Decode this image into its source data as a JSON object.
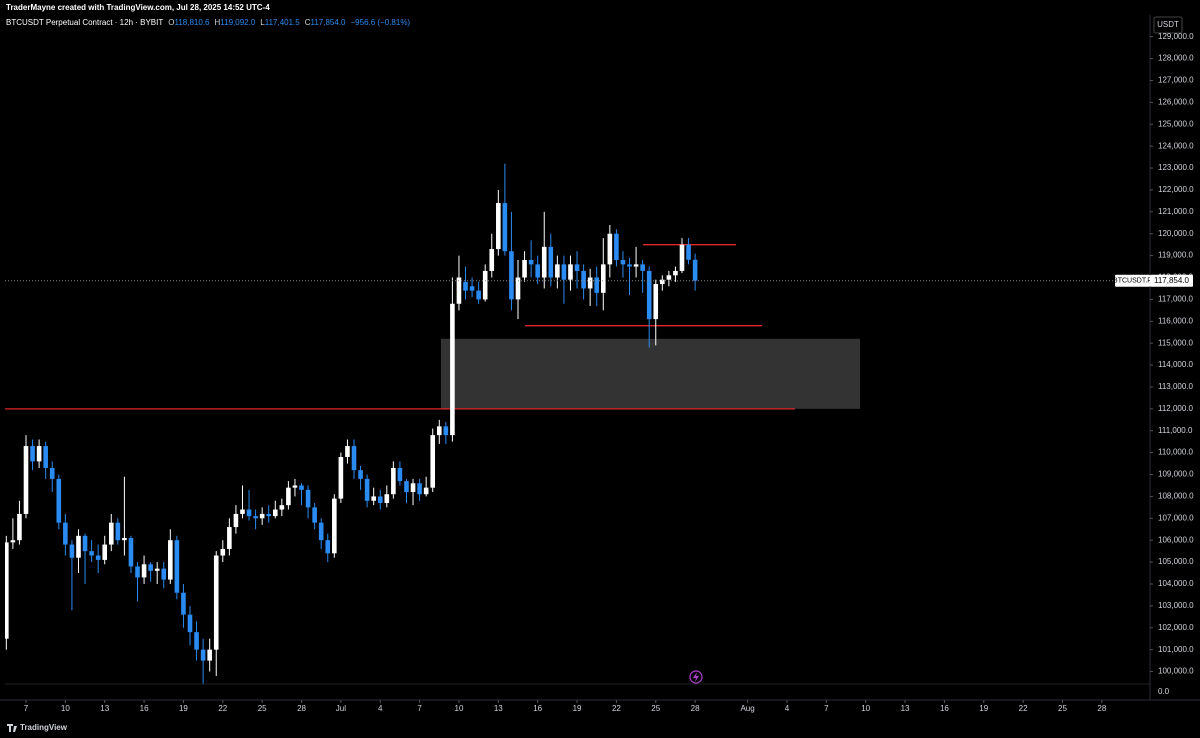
{
  "header": {
    "credit": "TraderMayne created with TradingView.com, Jul 28, 2025 14:52 UTC-4",
    "symbol": "BTCUSDT Perpetual Contract · 12h · BYBIT",
    "ohlc": [
      {
        "key": "O",
        "value": "118,810.6"
      },
      {
        "key": "H",
        "value": "119,092.0"
      },
      {
        "key": "L",
        "value": "117,401.5"
      },
      {
        "key": "C",
        "value": "117,854.0"
      }
    ],
    "change": "−956.6 (−0.81%)"
  },
  "footer": {
    "brand": "TradingView"
  },
  "chart_data": {
    "type": "candlestick",
    "currency": "USDT",
    "grid": false,
    "up_color": "#ffffff",
    "down_color": "#2a8bf2",
    "ylim": [
      98700,
      129900
    ],
    "yticks": [
      {
        "value": 100000,
        "label": "100,000.0"
      },
      {
        "value": 101000,
        "label": "101,000.0"
      },
      {
        "value": 102000,
        "label": "102,000.0"
      },
      {
        "value": 103000,
        "label": "103,000.0"
      },
      {
        "value": 104000,
        "label": "104,000.0"
      },
      {
        "value": 105000,
        "label": "105,000.0"
      },
      {
        "value": 106000,
        "label": "106,000.0"
      },
      {
        "value": 107000,
        "label": "107,000.0"
      },
      {
        "value": 108000,
        "label": "108,000.0"
      },
      {
        "value": 109000,
        "label": "109,000.0"
      },
      {
        "value": 110000,
        "label": "110,000.0"
      },
      {
        "value": 111000,
        "label": "111,000.0"
      },
      {
        "value": 112000,
        "label": "112,000.0"
      },
      {
        "value": 113000,
        "label": "113,000.0"
      },
      {
        "value": 114000,
        "label": "114,000.0"
      },
      {
        "value": 115000,
        "label": "115,000.0"
      },
      {
        "value": 116000,
        "label": "116,000.0"
      },
      {
        "value": 117000,
        "label": "117,000.0"
      },
      {
        "value": 118000,
        "label": "118,000.0"
      },
      {
        "value": 119000,
        "label": "119,000.0"
      },
      {
        "value": 120000,
        "label": "120,000.0"
      },
      {
        "value": 121000,
        "label": "121,000.0"
      },
      {
        "value": 122000,
        "label": "122,000.0"
      },
      {
        "value": 123000,
        "label": "123,000.0"
      },
      {
        "value": 124000,
        "label": "124,000.0"
      },
      {
        "value": 125000,
        "label": "125,000.0"
      },
      {
        "value": 126000,
        "label": "126,000.0"
      },
      {
        "value": 127000,
        "label": "127,000.0"
      },
      {
        "value": 128000,
        "label": "128,000.0"
      },
      {
        "value": 129000,
        "label": "129,000.0"
      }
    ],
    "pane_zero_label": "0.0",
    "xticks": [
      {
        "value": "2025-06-07",
        "label": "7"
      },
      {
        "value": "2025-06-10",
        "label": "10"
      },
      {
        "value": "2025-06-13",
        "label": "13"
      },
      {
        "value": "2025-06-16",
        "label": "16"
      },
      {
        "value": "2025-06-19",
        "label": "19"
      },
      {
        "value": "2025-06-22",
        "label": "22"
      },
      {
        "value": "2025-06-25",
        "label": "25"
      },
      {
        "value": "2025-06-28",
        "label": "28"
      },
      {
        "value": "2025-07-01",
        "label": "Jul"
      },
      {
        "value": "2025-07-04",
        "label": "4"
      },
      {
        "value": "2025-07-07",
        "label": "7"
      },
      {
        "value": "2025-07-10",
        "label": "10"
      },
      {
        "value": "2025-07-13",
        "label": "13"
      },
      {
        "value": "2025-07-16",
        "label": "16"
      },
      {
        "value": "2025-07-19",
        "label": "19"
      },
      {
        "value": "2025-07-22",
        "label": "22"
      },
      {
        "value": "2025-07-25",
        "label": "25"
      },
      {
        "value": "2025-07-28",
        "label": "28"
      },
      {
        "value": "2025-08-01",
        "label": "Aug"
      },
      {
        "value": "2025-08-04",
        "label": "4"
      },
      {
        "value": "2025-08-07",
        "label": "7"
      },
      {
        "value": "2025-08-10",
        "label": "10"
      },
      {
        "value": "2025-08-13",
        "label": "13"
      },
      {
        "value": "2025-08-16",
        "label": "16"
      },
      {
        "value": "2025-08-19",
        "label": "19"
      },
      {
        "value": "2025-08-22",
        "label": "22"
      },
      {
        "value": "2025-08-25",
        "label": "25"
      },
      {
        "value": "2025-08-28",
        "label": "28"
      }
    ],
    "open": [
      101500,
      105900,
      106000,
      107200,
      110300,
      109600,
      110300,
      109300,
      108800,
      106800,
      105800,
      105200,
      106200,
      105500,
      105300,
      105100,
      105800,
      106800,
      106000,
      106100,
      104800,
      104300,
      104900,
      104600,
      104700,
      104200,
      106000,
      103600,
      102600,
      101800,
      101000,
      100500,
      101000,
      105300,
      105600,
      106600,
      107200,
      107400,
      107100,
      107000,
      107200,
      107100,
      107400,
      107600,
      108400,
      108500,
      108300,
      107500,
      106800,
      106000,
      105400,
      107900,
      109800,
      110300,
      109200,
      108800,
      107800,
      108000,
      107700,
      108100,
      109300,
      108700,
      108200,
      108600,
      108100,
      108400,
      110800,
      111200,
      110800,
      116800,
      117800,
      117600,
      117400,
      117000,
      118300,
      119300,
      121400,
      119200,
      117000,
      118000,
      118800,
      118600,
      118000,
      119400,
      118000,
      118600,
      117900,
      118600,
      118300,
      117500,
      118000,
      117300,
      118600,
      120000,
      118800,
      118600,
      118500,
      118600,
      118300,
      116100,
      117700,
      117900,
      118100,
      118300,
      119500,
      118810.6
    ],
    "high": [
      106200,
      107000,
      107800,
      110800,
      110600,
      110600,
      110500,
      109600,
      109000,
      107200,
      106000,
      106500,
      106300,
      106000,
      105800,
      106200,
      107200,
      107000,
      108900,
      106200,
      105000,
      105300,
      105000,
      105000,
      105000,
      106500,
      106200,
      104000,
      103000,
      102300,
      101500,
      101500,
      105500,
      106000,
      107000,
      107600,
      108500,
      108300,
      107400,
      107500,
      107600,
      107800,
      107900,
      108700,
      108800,
      108600,
      108500,
      107700,
      107000,
      106300,
      108100,
      110000,
      110600,
      110600,
      109400,
      109000,
      108400,
      108300,
      108500,
      109600,
      109600,
      108800,
      108800,
      108800,
      108900,
      111100,
      111500,
      111400,
      118000,
      119000,
      118500,
      118000,
      117800,
      118600,
      120000,
      122000,
      123200,
      121000,
      118800,
      119200,
      119700,
      119000,
      121000,
      120000,
      119000,
      119000,
      119000,
      119200,
      118600,
      118400,
      118500,
      119800,
      120400,
      120200,
      119200,
      118900,
      119400,
      118800,
      118500,
      117900,
      118100,
      118300,
      118500,
      119800,
      119800,
      119092.0
    ],
    "low": [
      101000,
      105600,
      105800,
      107000,
      109200,
      109300,
      108800,
      108200,
      106500,
      105300,
      102800,
      104500,
      104000,
      105000,
      104500,
      104900,
      105500,
      105800,
      105300,
      104500,
      103200,
      104000,
      104100,
      104000,
      103800,
      104000,
      103300,
      102000,
      101200,
      100500,
      99450,
      100000,
      99800,
      105000,
      105300,
      106300,
      107000,
      106900,
      106500,
      106700,
      106800,
      107000,
      107100,
      107400,
      108000,
      107600,
      107000,
      106500,
      105600,
      105000,
      105200,
      107700,
      109500,
      108800,
      108300,
      107500,
      107600,
      107400,
      107500,
      107900,
      108500,
      107700,
      107600,
      107800,
      108000,
      108200,
      110400,
      110400,
      110500,
      116500,
      117000,
      117100,
      116800,
      116900,
      118000,
      119000,
      119000,
      116500,
      116100,
      117800,
      118000,
      117700,
      117500,
      117600,
      117500,
      116800,
      117400,
      117500,
      117000,
      116700,
      116700,
      116500,
      118000,
      118500,
      118000,
      117200,
      118000,
      117300,
      114800,
      114900,
      117400,
      117600,
      117800,
      118200,
      118600,
      117401.5
    ],
    "close": [
      105900,
      106000,
      107200,
      110300,
      109600,
      110300,
      109300,
      108800,
      106800,
      105800,
      105200,
      106200,
      105500,
      105300,
      105100,
      105800,
      106800,
      106000,
      106100,
      104800,
      104300,
      104900,
      104600,
      104700,
      104200,
      106000,
      103600,
      102600,
      101800,
      101000,
      100500,
      101000,
      105300,
      105600,
      106600,
      107200,
      107400,
      107100,
      107000,
      107200,
      107100,
      107400,
      107600,
      108400,
      108500,
      108300,
      107500,
      106800,
      106000,
      105400,
      107900,
      109800,
      110300,
      109200,
      108800,
      107800,
      108000,
      107700,
      108100,
      109300,
      108700,
      108200,
      108600,
      108100,
      108400,
      110800,
      111200,
      110800,
      116800,
      118000,
      117400,
      117400,
      117000,
      118300,
      119300,
      121400,
      119200,
      117000,
      118000,
      118800,
      118600,
      118000,
      119400,
      118000,
      118600,
      117900,
      118600,
      118300,
      117500,
      118000,
      117300,
      118600,
      120000,
      118800,
      118600,
      118500,
      118600,
      118300,
      116100,
      117700,
      117900,
      118100,
      118300,
      119500,
      118810.6,
      117854.0
    ],
    "last_price": {
      "name": "BTCUSDT.P",
      "label": "117,854.0"
    },
    "levels": [
      {
        "price": 112000,
        "color": "#e0262b"
      },
      {
        "price": 115800,
        "color": "#e0262b"
      },
      {
        "price": 119500,
        "color": "#e0262b"
      }
    ],
    "zone": {
      "top": 115200,
      "bottom": 112000,
      "color": "#333333"
    }
  }
}
